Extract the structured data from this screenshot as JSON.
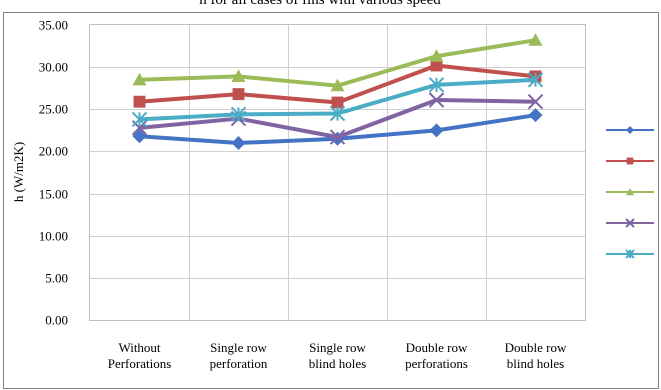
{
  "header_text": "h for all cases of fins with various speed",
  "chart_data": {
    "type": "line",
    "title": "",
    "xlabel": "",
    "ylabel": "h (W/m2K)",
    "ylim": [
      0,
      35
    ],
    "yticks": [
      "0.00",
      "5.00",
      "10.00",
      "15.00",
      "20.00",
      "25.00",
      "30.00",
      "35.00"
    ],
    "grid": true,
    "legend_position": "right",
    "categories": [
      [
        "Without",
        "Perforations"
      ],
      [
        "Single row",
        "perforation"
      ],
      [
        "Single row",
        "blind holes"
      ],
      [
        "Double row",
        "perforations"
      ],
      [
        "Double row",
        "blind holes"
      ]
    ],
    "series": [
      {
        "color": "#4472C4",
        "marker": "diamond",
        "values": [
          21.8,
          21.0,
          21.5,
          22.5,
          24.3
        ]
      },
      {
        "color": "#C0504D",
        "marker": "square",
        "values": [
          25.9,
          26.8,
          25.8,
          30.2,
          28.9
        ]
      },
      {
        "color": "#9BBB59",
        "marker": "triangle",
        "values": [
          28.5,
          28.9,
          27.8,
          31.3,
          33.2
        ]
      },
      {
        "color": "#8064A2",
        "marker": "x",
        "values": [
          22.8,
          23.9,
          21.7,
          26.1,
          25.9
        ]
      },
      {
        "color": "#4BACC6",
        "marker": "star",
        "values": [
          23.8,
          24.4,
          24.5,
          27.9,
          28.5
        ]
      }
    ]
  }
}
